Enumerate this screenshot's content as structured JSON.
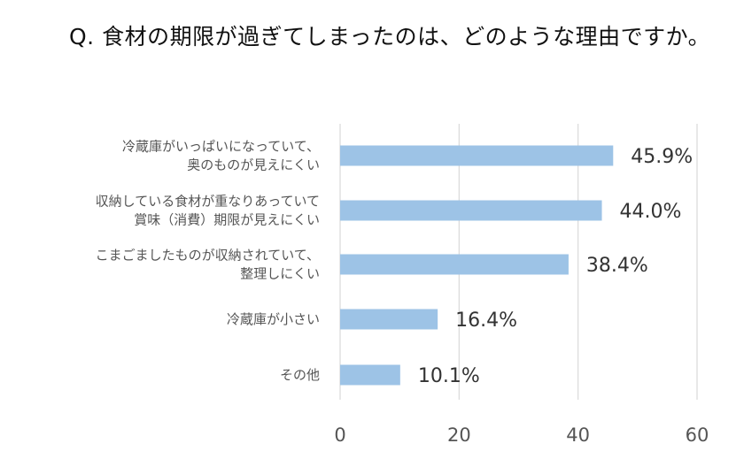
{
  "title": "Q. 食材の期限が過ぎてしまったのは、どのような理由ですか。",
  "colors": {
    "bar": "#9DC3E6",
    "grid": "#D9D9D9"
  },
  "chart_data": {
    "type": "bar",
    "orientation": "horizontal",
    "title": "Q. 食材の期限が過ぎてしまったのは、どのような理由ですか。",
    "categories": [
      [
        "冷蔵庫がいっぱいになっていて、",
        "奥のものが見えにくい"
      ],
      [
        "収納している食材が重なりあっていて",
        "賞味（消費）期限が見えにくい"
      ],
      [
        "こまごましたものが収納されていて、",
        "整理しにくい"
      ],
      [
        "冷蔵庫が小さい"
      ],
      [
        "その他"
      ]
    ],
    "values": [
      45.9,
      44.0,
      38.4,
      16.4,
      10.1
    ],
    "value_labels": [
      "45.9%",
      "44.0%",
      "38.4%",
      "16.4%",
      "10.1%"
    ],
    "xlim": [
      0,
      60
    ],
    "xticks": [
      0,
      20,
      40,
      60
    ],
    "xtick_labels": [
      "0",
      "20",
      "40",
      "60"
    ],
    "grid": "vertical",
    "legend": "none",
    "xlabel": "",
    "ylabel": ""
  }
}
